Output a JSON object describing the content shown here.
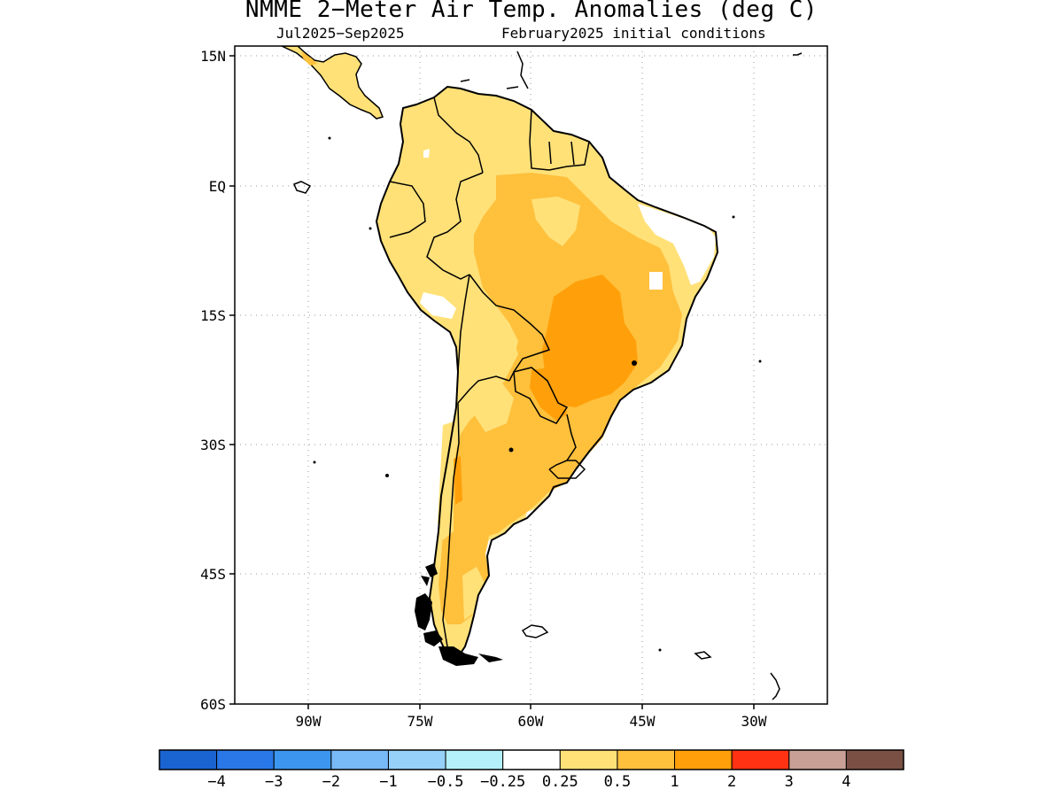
{
  "title": "NMME 2−Meter Air Temp. Anomalies (deg C)",
  "subtitle_left": "Jul2025−Sep2025",
  "subtitle_right": "February2025 initial conditions",
  "lat_labels": [
    "15N",
    "EQ",
    "15S",
    "30S",
    "45S",
    "60S"
  ],
  "lon_labels": [
    "90W",
    "75W",
    "60W",
    "45W",
    "30W"
  ],
  "colorbar": {
    "colors": [
      "#1a64d2",
      "#2a78e8",
      "#3c96f0",
      "#78b9f8",
      "#96d1fa",
      "#b4f0fa",
      "#ffffff",
      "#ffe178",
      "#ffc03c",
      "#ffa00a",
      "#ff3214",
      "#c8a096",
      "#7a5044"
    ],
    "labels": [
      "−4",
      "−3",
      "−2",
      "−1",
      "−0.5",
      "−0.25",
      "0.25",
      "0.5",
      "1",
      "2",
      "3",
      "4"
    ]
  },
  "anomaly_colors": {
    "light": "#ffe178",
    "medium": "#ffc03c",
    "strong": "#ffa00a"
  }
}
